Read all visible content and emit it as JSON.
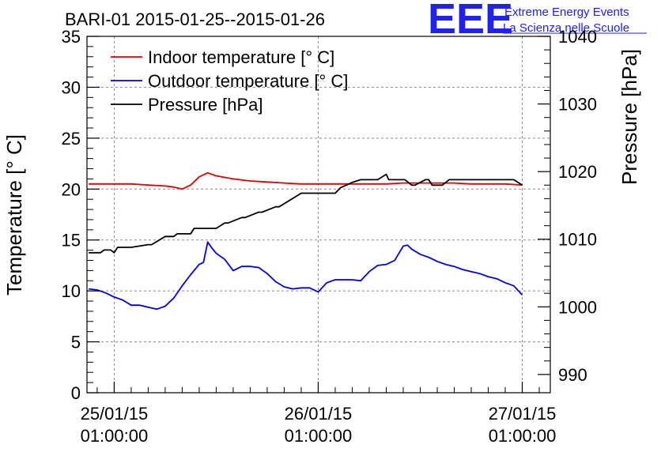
{
  "title": "BARI-01 2015-01-25--2015-01-26",
  "logo": {
    "mark": "EEE",
    "line1": "Extreme Energy Events",
    "line2": "La Scienza nelle Scuole"
  },
  "colors": {
    "indoor": "#e00000",
    "outdoor": "#0000e0",
    "pressure": "#000000",
    "logo": "#2222ee"
  },
  "chart_data": {
    "type": "line",
    "title": "BARI-01 2015-01-25--2015-01-26",
    "ylabel": "Temperature [° C]",
    "y2label": "Pressure [hPa]",
    "ylim": [
      0,
      35
    ],
    "y2lim": [
      988,
      1040
    ],
    "yticks": [
      "0",
      "5",
      "10",
      "15",
      "20",
      "25",
      "30",
      "35"
    ],
    "y2ticks": [
      "990",
      "1000",
      "1010",
      "1020",
      "1030",
      "1040"
    ],
    "xlim_hours": [
      -3.2,
      51.3
    ],
    "xtick_hours": [
      0,
      24,
      48
    ],
    "xtick_labels": [
      [
        "25/01/15",
        "01:00:00"
      ],
      [
        "26/01/15",
        "01:00:00"
      ],
      [
        "27/01/15",
        "01:00:00"
      ]
    ],
    "grid": true,
    "legend_position": "top-left",
    "series": [
      {
        "name": "Indoor temperature [° C]",
        "axis": "left",
        "color": "#e00000",
        "x": [
          -3,
          0,
          2,
          4,
          6,
          7,
          8,
          9,
          10,
          11,
          12,
          14,
          16,
          18,
          20,
          22,
          24,
          26,
          28,
          30,
          32,
          34,
          36,
          38,
          40,
          42,
          44,
          46,
          48
        ],
        "y": [
          20.5,
          20.5,
          20.5,
          20.4,
          20.3,
          20.2,
          20.0,
          20.4,
          21.2,
          21.6,
          21.3,
          21.0,
          20.8,
          20.7,
          20.6,
          20.5,
          20.5,
          20.5,
          20.5,
          20.5,
          20.5,
          20.6,
          20.6,
          20.6,
          20.6,
          20.5,
          20.5,
          20.5,
          20.4
        ]
      },
      {
        "name": "Outdoor temperature [° C]",
        "axis": "left",
        "color": "#0000e0",
        "x": [
          -3,
          -2,
          -1,
          0,
          1,
          2,
          3,
          4,
          5,
          6,
          7,
          8,
          9,
          10,
          10.5,
          11,
          11.5,
          12,
          13,
          14,
          15,
          16,
          17,
          18,
          19,
          20,
          21,
          22,
          23,
          24,
          25,
          26,
          27,
          28,
          29,
          30,
          31,
          32,
          33,
          34,
          34.5,
          35,
          36,
          37,
          38,
          39,
          40,
          41,
          42,
          43,
          44,
          45,
          46,
          47,
          48
        ],
        "y": [
          10.2,
          10.1,
          9.8,
          9.4,
          9.1,
          8.6,
          8.6,
          8.4,
          8.2,
          8.5,
          9.3,
          10.5,
          11.6,
          12.6,
          12.8,
          14.8,
          14.2,
          13.7,
          13.1,
          12.0,
          12.4,
          12.4,
          12.3,
          11.7,
          10.9,
          10.4,
          10.2,
          10.3,
          10.3,
          9.9,
          10.8,
          11.1,
          11.1,
          11.1,
          11.0,
          11.9,
          12.5,
          12.6,
          13.0,
          14.4,
          14.5,
          14.1,
          13.6,
          13.3,
          12.9,
          12.6,
          12.4,
          12.1,
          11.9,
          11.7,
          11.4,
          11.2,
          10.8,
          10.5,
          9.6
        ]
      },
      {
        "name": "Pressure [hPa]",
        "axis": "right",
        "color": "#000000",
        "x": [
          -3,
          -1.6,
          -1.2,
          -0.4,
          0,
          0.4,
          2,
          4,
          4.4,
          6,
          7,
          7.4,
          9,
          9.4,
          12,
          13,
          13.4,
          15,
          15.4,
          17,
          17.4,
          19,
          19.4,
          22,
          26,
          26.6,
          28,
          29,
          30,
          31,
          32,
          32.3,
          33,
          34.2,
          35,
          35.4,
          36.6,
          37,
          37.4,
          38.6,
          39.4,
          44,
          45,
          46,
          47,
          48
        ],
        "y": [
          1008,
          1008,
          1008.4,
          1008.4,
          1008,
          1008.8,
          1008.8,
          1009.2,
          1009.2,
          1010.4,
          1010.4,
          1010.8,
          1010.8,
          1011.6,
          1011.6,
          1012.4,
          1012.4,
          1013.2,
          1013.2,
          1014,
          1014,
          1014.8,
          1014.8,
          1016.8,
          1016.8,
          1017.6,
          1018.4,
          1018.8,
          1018.8,
          1018.8,
          1019.6,
          1018.8,
          1018.8,
          1018.8,
          1018.0,
          1018.0,
          1018.8,
          1018.8,
          1018.0,
          1018.0,
          1018.8,
          1018.8,
          1018.8,
          1018.8,
          1018.8,
          1018.0
        ]
      }
    ]
  }
}
